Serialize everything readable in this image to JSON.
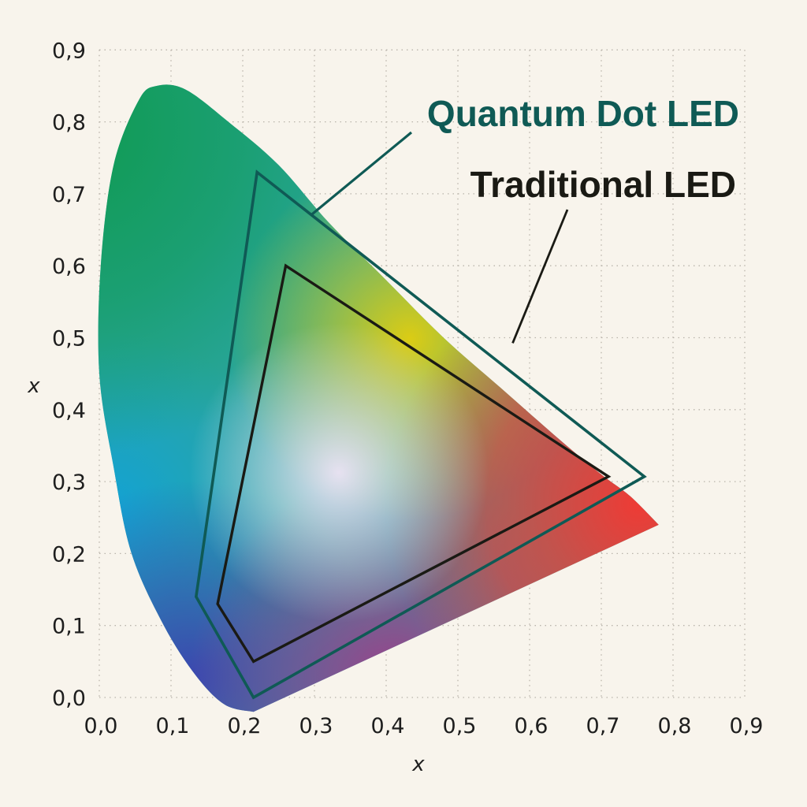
{
  "chart_data": {
    "type": "line",
    "xlabel": "x",
    "ylabel": "x",
    "xlim": [
      0.0,
      0.9
    ],
    "ylim": [
      0.0,
      0.9
    ],
    "grid": true,
    "x_ticks": [
      "0,0",
      "0,1",
      "0,2",
      "0,3",
      "0,4",
      "0,5",
      "0,6",
      "0,7",
      "0,8",
      "0,9"
    ],
    "y_ticks": [
      "0,0",
      "0,1",
      "0,2",
      "0,3",
      "0,4",
      "0,5",
      "0,6",
      "0,7",
      "0,8",
      "0,9"
    ],
    "tick_values": [
      0.0,
      0.1,
      0.2,
      0.3,
      0.4,
      0.5,
      0.6,
      0.7,
      0.8,
      0.9
    ],
    "colors": {
      "quantum": "#0f5a55",
      "traditional": "#1a1a14",
      "background": "#f8f4ec"
    },
    "spectral_locus": {
      "x": [
        0.215,
        0.175,
        0.135,
        0.09,
        0.045,
        0.02,
        0.0,
        0.002,
        0.02,
        0.055,
        0.08,
        0.12,
        0.18,
        0.25,
        0.32,
        0.4,
        0.48,
        0.56,
        0.64,
        0.7,
        0.74,
        0.78
      ],
      "y": [
        -0.02,
        -0.01,
        0.03,
        0.1,
        0.2,
        0.32,
        0.45,
        0.6,
        0.74,
        0.83,
        0.85,
        0.845,
        0.8,
        0.74,
        0.66,
        0.58,
        0.5,
        0.43,
        0.36,
        0.31,
        0.28,
        0.24
      ]
    },
    "series": [
      {
        "name": "Quantum Dot LED",
        "x": [
          0.22,
          0.76,
          0.215,
          0.135
        ],
        "y": [
          0.73,
          0.307,
          0.0,
          0.14
        ],
        "closed": true
      },
      {
        "name": "Traditional LED",
        "x": [
          0.26,
          0.71,
          0.215,
          0.165
        ],
        "y": [
          0.6,
          0.307,
          0.05,
          0.13
        ],
        "closed": true
      }
    ],
    "annotations": [
      {
        "series": "Quantum Dot LED",
        "text": "Quantum Dot LED"
      },
      {
        "series": "Traditional LED",
        "text": "Traditional LED"
      }
    ]
  }
}
